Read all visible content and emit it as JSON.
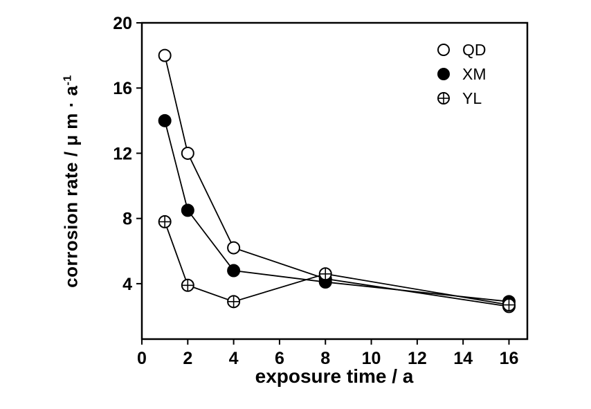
{
  "chart_data": {
    "type": "line",
    "title": "",
    "xlabel": "exposure time / a",
    "ylabel": "corrosion rate / μ m · a",
    "ylabel_exponent": "-1",
    "xlim": [
      0,
      16.8
    ],
    "ylim": [
      0.6,
      20
    ],
    "x_ticks": [
      0,
      2,
      4,
      6,
      8,
      10,
      12,
      14,
      16
    ],
    "y_ticks": [
      4,
      8,
      12,
      16,
      20
    ],
    "grid": false,
    "legend_position": "top-right-inside",
    "series": [
      {
        "name": "QD",
        "marker": "open-circle",
        "x": [
          1,
          2,
          4,
          8,
          16
        ],
        "y": [
          18,
          12,
          6.2,
          4.3,
          2.6
        ]
      },
      {
        "name": "XM",
        "marker": "filled-circle",
        "x": [
          1,
          2,
          4,
          8,
          16
        ],
        "y": [
          14,
          8.5,
          4.8,
          4.1,
          2.9
        ]
      },
      {
        "name": "YL",
        "marker": "crossed-circle",
        "x": [
          1,
          2,
          4,
          8,
          16
        ],
        "y": [
          7.8,
          3.9,
          2.9,
          4.6,
          2.7
        ]
      }
    ],
    "colors": {
      "stroke": "#000000",
      "background": "#ffffff"
    }
  }
}
